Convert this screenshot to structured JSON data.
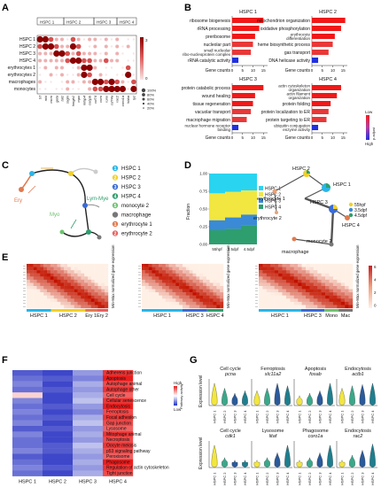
{
  "panels": {
    "A": {
      "label": "A",
      "clusters": [
        "HSPC 1",
        "HSPC 2",
        "HSPC 3",
        "HSPC 4"
      ],
      "rows": [
        "HSPC 1",
        "HSPC 2",
        "HSPC 3",
        "HSPC 4",
        "erythrocytes 1",
        "erythrocytes 2",
        "macrophages",
        "monocytes"
      ],
      "genes": [
        "tcf",
        "mki",
        "mcm",
        "gata",
        "tal1",
        "tagln",
        "hmgb1",
        "mpx",
        "mfap4",
        "cebpb",
        "cd74",
        "coro",
        "runx",
        "cd74a",
        "rac2",
        "coro1a",
        "hbba",
        "lyz"
      ],
      "size_legend": [
        "100%",
        "80%",
        "60%",
        "40%",
        "20%"
      ],
      "color_scale_max": "3",
      "color_scale_min": "0"
    },
    "B": {
      "label": "B",
      "xlabel": "Gene counts",
      "ticks": [
        "0",
        "5",
        "10",
        "15"
      ],
      "legend_top": "Low",
      "legend_bottom": "High",
      "legend_title": "p.adjust",
      "subpanels": [
        {
          "title": "HSPC 1",
          "terms": [
            "ribosome biogenesis",
            "rRNA processing",
            "preribosome",
            "nucleolar part",
            "small nucleolar ribo-nucleoprotein complex",
            "rRNA catalytic activity"
          ],
          "values": [
            15,
            13,
            11,
            10,
            9,
            3
          ]
        },
        {
          "title": "HSPC 2",
          "terms": [
            "mitochondrion organization",
            "oxidative phosphorylation",
            "erythrocyte differentiation",
            "heme biosynthetic process",
            "gas transport",
            "DNA helicase activity"
          ],
          "values": [
            16,
            14,
            11,
            10,
            8,
            3
          ]
        },
        {
          "title": "HSPC 3",
          "terms": [
            "protein catabolic process",
            "wound healing",
            "tissue regeneration",
            "vacuolar transport",
            "macrophage migration",
            "nuclear hormone receptor binding"
          ],
          "values": [
            15,
            11,
            10,
            9,
            7,
            3
          ]
        },
        {
          "title": "HSPC 4",
          "terms": [
            "actin cytoskeleton organization",
            "actin filament organization",
            "protein folding",
            "protein localization to ER",
            "protein targeting to ER",
            "ubiquitin conjugation enzyme activity"
          ],
          "values": [
            14,
            12,
            9,
            8,
            7,
            3
          ]
        }
      ]
    },
    "C": {
      "label": "C",
      "branches": [
        "Ery",
        "Lym-Mye",
        "Myo"
      ],
      "legend": [
        {
          "num": "1",
          "name": "HSPC 1",
          "color": "#29b6e8"
        },
        {
          "num": "2",
          "name": "HSPC 2",
          "color": "#f2d027"
        },
        {
          "num": "3",
          "name": "HSPC 3",
          "color": "#3a6bd6"
        },
        {
          "num": "4",
          "name": "HSPC 4",
          "color": "#2e9e6e"
        },
        {
          "num": "5",
          "name": "monocyte 2",
          "color": "#6cc36e"
        },
        {
          "num": "",
          "name": "macrophage",
          "color": "#777777"
        },
        {
          "num": "1",
          "name": "erythrocyte 1",
          "color": "#e07a50"
        },
        {
          "num": "2",
          "name": "erythrocyte 2",
          "color": "#e86060"
        }
      ]
    },
    "D": {
      "label": "D",
      "ylabel": "Fraction",
      "yticks": [
        "0.00",
        "0.25",
        "0.50",
        "0.75",
        "1.00"
      ],
      "categories": [
        "55hpf",
        "3.5dpf",
        "4.5dpf"
      ],
      "legend": [
        "HSPC 1",
        "HSPC 2",
        "HSPC 3",
        "HSPC 4"
      ],
      "time_legend": [
        "55hpf",
        "3.5dpf",
        "4.5dpf"
      ],
      "graph_nodes": [
        "HSPC 2",
        "HSPC 1",
        "erythrocyte 1",
        "HSPC 3",
        "HSPC 4",
        "erythrocyte 2",
        "monocyte 2",
        "macrophage"
      ]
    },
    "E": {
      "label": "E",
      "ylabel": "Min-Max normalized gene expression",
      "groups1": [
        "HSPC 1",
        "HSPC 2",
        "Ery 1",
        "Ery 2"
      ],
      "groups2": [
        "HSPC 1",
        "HSPC 3",
        "HSPC 4"
      ],
      "groups3": [
        "HSPC 1",
        "HSPC 3",
        "Mono",
        "Mac"
      ],
      "scale": [
        "6",
        "4",
        "2",
        "0"
      ]
    },
    "F": {
      "label": "F",
      "pathways": [
        "Adherens junction",
        "Apoptosis",
        "Autophage animal",
        "Autophage other",
        "Cell cycle",
        "Cellular senescence",
        "Endocytosis",
        "Ferroptosis",
        "Focal adhesion",
        "Gap junction",
        "Lysosome",
        "Mitophage animal",
        "Necroptosis",
        "Oocyte meiosis",
        "p53 signaling pathway",
        "Peroxisome",
        "Phagosome",
        "Regulation of actin cytoskeleton",
        "Tight junction"
      ],
      "columns": [
        "HSPC 1",
        "HSPC 2",
        "HSPC 3",
        "HSPC 4"
      ],
      "legend_title": "Pathway activity",
      "legend_high": "High",
      "legend_low": "Low"
    },
    "G": {
      "label": "G",
      "ylabel": "Expression level",
      "x": [
        "HSPC 1",
        "HSPC 2",
        "HSPC 3",
        "HSPC 4"
      ],
      "top": [
        {
          "title": "Cell cycle",
          "gene": "pcna"
        },
        {
          "title": "Ferroptosis",
          "gene": "slc11a2"
        },
        {
          "title": "Apoptosis",
          "gene": "fosab"
        },
        {
          "title": "Endocytosis",
          "gene": "actb1"
        }
      ],
      "bottom": [
        {
          "title": "Cell cycle",
          "gene": "cdk1"
        },
        {
          "title": "Lysosome",
          "gene": "litaf"
        },
        {
          "title": "Phagosome",
          "gene": "coro1a"
        },
        {
          "title": "Endocytosis",
          "gene": "rac2"
        }
      ]
    }
  }
}
